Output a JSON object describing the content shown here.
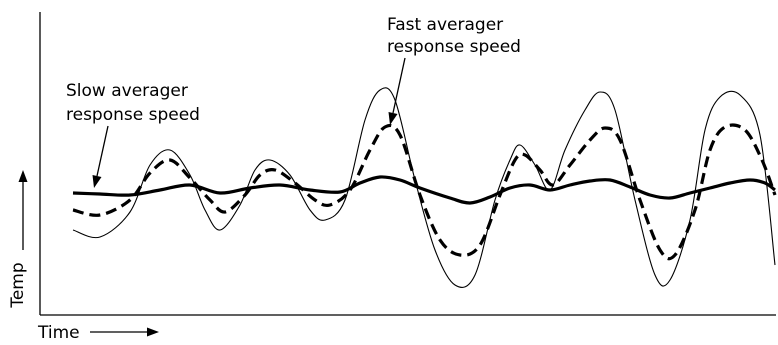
{
  "chart_data": {
    "type": "line",
    "title": "",
    "xlabel": "Time",
    "ylabel": "Temp",
    "grid": false,
    "legend": "none",
    "ticks": false,
    "annotations": [
      {
        "id": "fast",
        "lines": [
          "Fast averager",
          "response speed"
        ],
        "points_to": "Fast averager"
      },
      {
        "id": "slow",
        "lines": [
          "Slow averager",
          "response speed"
        ],
        "points_to": "Slow averager"
      }
    ],
    "series": [
      {
        "style": "thin",
        "color": "#000000",
        "points": [
          [
            73,
            230
          ],
          [
            100,
            237
          ],
          [
            130,
            212
          ],
          [
            150,
            165
          ],
          [
            170,
            150
          ],
          [
            190,
            175
          ],
          [
            205,
            210
          ],
          [
            220,
            230
          ],
          [
            240,
            205
          ],
          [
            255,
            170
          ],
          [
            270,
            160
          ],
          [
            290,
            175
          ],
          [
            310,
            210
          ],
          [
            325,
            220
          ],
          [
            345,
            200
          ],
          [
            365,
            120
          ],
          [
            380,
            90
          ],
          [
            395,
            100
          ],
          [
            415,
            180
          ],
          [
            435,
            250
          ],
          [
            455,
            285
          ],
          [
            475,
            275
          ],
          [
            495,
            200
          ],
          [
            510,
            160
          ],
          [
            520,
            145
          ],
          [
            535,
            165
          ],
          [
            550,
            190
          ],
          [
            565,
            150
          ],
          [
            585,
            110
          ],
          [
            600,
            92
          ],
          [
            615,
            110
          ],
          [
            635,
            200
          ],
          [
            655,
            275
          ],
          [
            670,
            280
          ],
          [
            690,
            220
          ],
          [
            705,
            130
          ],
          [
            720,
            97
          ],
          [
            740,
            95
          ],
          [
            760,
            135
          ],
          [
            775,
            265
          ]
        ]
      },
      {
        "style": "dashed",
        "color": "#000000",
        "points": [
          [
            73,
            210
          ],
          [
            100,
            215
          ],
          [
            130,
            200
          ],
          [
            150,
            173
          ],
          [
            170,
            160
          ],
          [
            190,
            178
          ],
          [
            210,
            200
          ],
          [
            225,
            212
          ],
          [
            245,
            195
          ],
          [
            260,
            175
          ],
          [
            275,
            170
          ],
          [
            295,
            183
          ],
          [
            315,
            200
          ],
          [
            330,
            205
          ],
          [
            350,
            190
          ],
          [
            370,
            150
          ],
          [
            385,
            127
          ],
          [
            400,
            135
          ],
          [
            420,
            195
          ],
          [
            440,
            240
          ],
          [
            460,
            255
          ],
          [
            480,
            245
          ],
          [
            500,
            195
          ],
          [
            515,
            160
          ],
          [
            525,
            155
          ],
          [
            540,
            170
          ],
          [
            553,
            185
          ],
          [
            570,
            165
          ],
          [
            590,
            140
          ],
          [
            605,
            128
          ],
          [
            620,
            140
          ],
          [
            640,
            200
          ],
          [
            660,
            250
          ],
          [
            675,
            255
          ],
          [
            695,
            210
          ],
          [
            710,
            150
          ],
          [
            725,
            127
          ],
          [
            745,
            130
          ],
          [
            762,
            160
          ],
          [
            775,
            195
          ]
        ]
      },
      {
        "style": "thick",
        "color": "#000000",
        "points": [
          [
            73,
            193
          ],
          [
            100,
            194
          ],
          [
            130,
            195
          ],
          [
            160,
            190
          ],
          [
            190,
            185
          ],
          [
            220,
            193
          ],
          [
            250,
            188
          ],
          [
            280,
            185
          ],
          [
            310,
            190
          ],
          [
            340,
            192
          ],
          [
            360,
            183
          ],
          [
            380,
            177
          ],
          [
            400,
            180
          ],
          [
            420,
            188
          ],
          [
            450,
            198
          ],
          [
            470,
            203
          ],
          [
            490,
            197
          ],
          [
            510,
            188
          ],
          [
            530,
            185
          ],
          [
            550,
            190
          ],
          [
            570,
            185
          ],
          [
            590,
            181
          ],
          [
            610,
            180
          ],
          [
            630,
            187
          ],
          [
            650,
            195
          ],
          [
            670,
            198
          ],
          [
            690,
            193
          ],
          [
            710,
            188
          ],
          [
            730,
            183
          ],
          [
            750,
            180
          ],
          [
            765,
            183
          ],
          [
            775,
            190
          ]
        ]
      }
    ]
  }
}
